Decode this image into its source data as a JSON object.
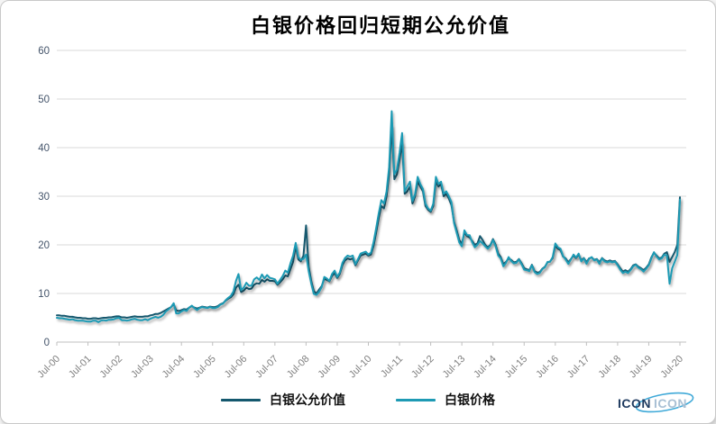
{
  "chart_data": {
    "type": "line",
    "title": "白银价格回归短期公允价值",
    "x_tick_labels": [
      "Jul-00",
      "Jul-01",
      "Jul-02",
      "Jul-03",
      "Jul-04",
      "Jul-05",
      "Jul-06",
      "Jul-07",
      "Jul-08",
      "Jul-09",
      "Jul-10",
      "Jul-11",
      "Jul-12",
      "Jul-13",
      "Jul-14",
      "Jul-15",
      "Jul-16",
      "Jul-17",
      "Jul-18",
      "Jul-19",
      "Jul-20"
    ],
    "x_start": "Jul-00",
    "x_end": "Jul-20",
    "points_per_year": 12,
    "y_ticks": [
      0,
      10,
      20,
      30,
      40,
      50,
      60
    ],
    "ylim": [
      0,
      60
    ],
    "grid": "horizontal",
    "legend_position": "bottom",
    "series": [
      {
        "name": "白银公允价值",
        "key": "fair-value",
        "color": "#14586E",
        "values": [
          5.5,
          5.5,
          5.4,
          5.4,
          5.3,
          5.2,
          5.2,
          5.1,
          5.0,
          5.0,
          4.9,
          4.9,
          4.8,
          4.8,
          4.9,
          4.9,
          4.8,
          4.9,
          5.0,
          5.0,
          5.1,
          5.1,
          5.2,
          5.3,
          5.3,
          5.1,
          5.1,
          5.0,
          5.1,
          5.2,
          5.3,
          5.2,
          5.2,
          5.2,
          5.3,
          5.3,
          5.5,
          5.6,
          5.8,
          5.8,
          6.0,
          6.3,
          6.6,
          6.9,
          7.2,
          7.8,
          6.5,
          6.4,
          6.6,
          6.8,
          6.7,
          7.1,
          7.4,
          7.1,
          6.9,
          7.1,
          7.3,
          7.2,
          7.1,
          7.3,
          7.2,
          7.2,
          7.4,
          7.8,
          8.0,
          8.5,
          8.9,
          9.2,
          9.8,
          11.2,
          11.8,
          10.3,
          10.6,
          11.2,
          10.9,
          11.0,
          11.8,
          12.1,
          12.0,
          12.8,
          12.4,
          12.9,
          12.6,
          12.6,
          12.5,
          11.8,
          12.3,
          12.9,
          13.7,
          13.5,
          15.0,
          16.5,
          19.8,
          17.0,
          16.6,
          17.8,
          24.0,
          15.5,
          12.5,
          10.5,
          10.0,
          10.8,
          11.5,
          13.0,
          12.8,
          12.5,
          13.6,
          14.2,
          13.2,
          14.0,
          15.8,
          16.8,
          17.2,
          17.0,
          17.2,
          15.8,
          16.8,
          17.8,
          18.0,
          18.2,
          17.8,
          18.0,
          19.8,
          22.5,
          25.5,
          28.0,
          27.5,
          30.0,
          34.5,
          44.5,
          33.5,
          34.5,
          37.5,
          41.0,
          30.5,
          31.0,
          32.0,
          28.5,
          30.0,
          33.0,
          32.0,
          31.0,
          28.0,
          27.2,
          26.8,
          28.0,
          33.0,
          32.0,
          32.5,
          30.0,
          30.5,
          29.5,
          28.2,
          24.8,
          23.0,
          21.0,
          20.2,
          22.5,
          21.8,
          21.5,
          20.8,
          20.0,
          20.3,
          21.8,
          21.0,
          20.0,
          19.5,
          20.0,
          21.2,
          20.0,
          18.2,
          17.5,
          16.0,
          16.5,
          17.2,
          16.9,
          16.4,
          16.5,
          17.1,
          16.2,
          15.2,
          15.0,
          14.8,
          15.9,
          14.6,
          14.3,
          14.4,
          15.1,
          15.5,
          16.4,
          16.6,
          17.3,
          19.8,
          19.2,
          18.9,
          17.6,
          17.2,
          16.4,
          17.1,
          17.8,
          17.3,
          18.0,
          16.8,
          17.3,
          16.4,
          17.2,
          17.4,
          16.9,
          17.1,
          16.4,
          17.3,
          16.8,
          16.6,
          16.8,
          16.6,
          16.7,
          16.0,
          15.2,
          14.5,
          14.8,
          14.5,
          15.0,
          15.8,
          16.0,
          15.5,
          15.2,
          14.8,
          15.3,
          16.0,
          17.4,
          18.4,
          17.8,
          17.2,
          17.4,
          18.2,
          18.5,
          16.5,
          17.5,
          18.5,
          20.0,
          29.8
        ]
      },
      {
        "name": "白银价格",
        "key": "price",
        "color": "#1E9AB4",
        "values": [
          5.0,
          4.9,
          4.9,
          4.8,
          4.7,
          4.6,
          4.7,
          4.5,
          4.4,
          4.4,
          4.4,
          4.3,
          4.2,
          4.2,
          4.4,
          4.4,
          4.1,
          4.4,
          4.5,
          4.4,
          4.6,
          4.6,
          4.7,
          4.9,
          5.0,
          4.5,
          4.5,
          4.4,
          4.5,
          4.7,
          4.8,
          4.6,
          4.5,
          4.5,
          4.7,
          4.5,
          4.8,
          5.0,
          5.2,
          5.0,
          5.2,
          5.6,
          6.3,
          6.7,
          7.2,
          8.0,
          5.9,
          5.9,
          6.3,
          6.6,
          6.4,
          7.1,
          7.5,
          7.0,
          6.6,
          7.0,
          7.2,
          7.1,
          7.0,
          7.2,
          7.0,
          7.0,
          7.2,
          7.7,
          7.9,
          8.6,
          9.1,
          9.5,
          10.4,
          12.6,
          14.0,
          10.7,
          11.2,
          12.2,
          11.6,
          11.6,
          12.9,
          13.3,
          12.8,
          13.9,
          13.1,
          13.8,
          13.2,
          13.1,
          12.9,
          12.0,
          12.8,
          13.6,
          14.7,
          14.3,
          16.2,
          17.8,
          20.4,
          17.5,
          16.9,
          17.1,
          18.0,
          14.6,
          12.0,
          9.9,
          9.7,
          10.3,
          11.3,
          13.4,
          13.1,
          12.6,
          14.0,
          14.7,
          13.4,
          14.3,
          16.3,
          17.3,
          17.8,
          17.6,
          17.8,
          16.0,
          17.1,
          18.2,
          18.4,
          18.6,
          18.0,
          18.4,
          20.6,
          23.4,
          26.5,
          29.2,
          28.5,
          31.0,
          36.0,
          47.5,
          34.5,
          35.5,
          39.0,
          43.0,
          31.0,
          32.0,
          33.0,
          29.0,
          30.5,
          34.0,
          32.5,
          31.5,
          28.5,
          27.5,
          27.0,
          28.5,
          34.0,
          32.5,
          33.0,
          30.5,
          31.0,
          30.0,
          28.8,
          24.5,
          22.5,
          20.5,
          19.7,
          23.0,
          22.0,
          22.0,
          20.5,
          19.5,
          20.0,
          20.8,
          20.3,
          19.7,
          19.2,
          19.8,
          21.0,
          19.7,
          17.8,
          17.2,
          15.6,
          16.3,
          17.5,
          16.7,
          16.2,
          16.3,
          17.0,
          16.0,
          14.9,
          14.8,
          14.6,
          15.8,
          14.4,
          14.0,
          14.2,
          15.0,
          15.4,
          16.5,
          16.5,
          17.5,
          20.3,
          19.5,
          19.2,
          17.7,
          17.0,
          16.1,
          17.0,
          18.0,
          17.4,
          18.2,
          16.6,
          17.2,
          16.1,
          17.1,
          17.5,
          16.8,
          17.0,
          16.1,
          17.2,
          16.6,
          16.4,
          16.6,
          16.4,
          16.6,
          15.8,
          14.9,
          14.2,
          14.5,
          14.2,
          14.8,
          15.6,
          15.9,
          15.3,
          15.0,
          14.5,
          15.1,
          15.8,
          17.2,
          18.5,
          17.6,
          17.0,
          17.2,
          18.0,
          17.8,
          12.0,
          15.2,
          16.5,
          17.9,
          29.3
        ]
      }
    ]
  },
  "colors": {
    "grid": "#D9D9D9",
    "axis": "#BFBFBF",
    "y_label": "#44546A",
    "x_label": "#808080",
    "title": "#000000"
  },
  "watermark": {
    "part1": "ICON",
    "part2": "ICON",
    "dark": "#1E3A5F",
    "light": "#A9C0D4",
    "ellipse": "#3FA9D8"
  }
}
